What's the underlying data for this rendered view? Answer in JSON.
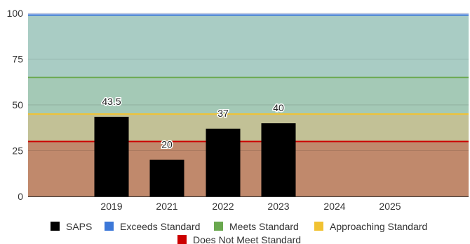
{
  "chart_data": {
    "type": "bar",
    "categories": [
      "2019",
      "2021",
      "2022",
      "2023",
      "2024",
      "2025"
    ],
    "series": [
      {
        "name": "SAPS",
        "values": [
          43.5,
          20,
          37,
          40,
          null,
          null
        ],
        "color": "#000000"
      }
    ],
    "data_labels": [
      "43.5",
      "20",
      "37",
      "40",
      "",
      ""
    ],
    "ylim": [
      0,
      100
    ],
    "yticks": [
      0,
      25,
      50,
      75,
      100
    ],
    "grid": true,
    "legend_position": "bottom",
    "reference_bands": [
      {
        "name": "Exceeds Standard",
        "from": 99,
        "to": 100,
        "color": "#3c78d8",
        "fill": "#c3d1f0"
      },
      {
        "name": "Meets Standard",
        "from": 65,
        "to": 99,
        "color": "#6aa84f",
        "fill": "#a9ccc4"
      },
      {
        "name": "Approaching Standard",
        "from": 45,
        "to": 65,
        "color": "#f1c232",
        "fill": "#a4c9b6"
      },
      {
        "name": "Does Not Meet Standard",
        "from": 30,
        "to": 45,
        "color": "#cc0000",
        "fill": "#c2c196"
      }
    ],
    "below_lowest_fill": "#c0896c",
    "legend": [
      {
        "label": "SAPS",
        "color": "#000000"
      },
      {
        "label": "Exceeds Standard",
        "color": "#3c78d8"
      },
      {
        "label": "Meets Standard",
        "color": "#6aa84f"
      },
      {
        "label": "Approaching Standard",
        "color": "#f1c232"
      },
      {
        "label": "Does Not Meet Standard",
        "color": "#cc0000"
      }
    ]
  }
}
